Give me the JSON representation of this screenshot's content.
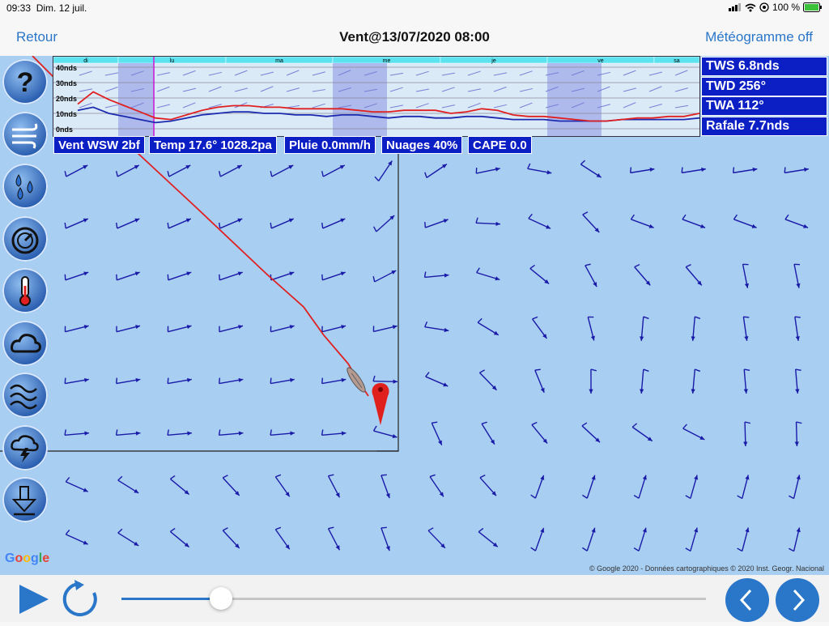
{
  "status": {
    "time": "09:33",
    "date": "Dim. 12 juil.",
    "battery": "100 %"
  },
  "nav": {
    "back_label": "Retour",
    "title": "Vent@13/07/2020 08:00",
    "meteogram_toggle": "Météogramme off"
  },
  "meteogram": {
    "days": [
      "di",
      "lu",
      "ma",
      "me",
      "je",
      "ve",
      "sa"
    ],
    "y_labels": [
      "40nds",
      "30nds",
      "20nds",
      "10nds",
      "0nds"
    ]
  },
  "info_boxes": [
    "Vent WSW 2bf",
    "Temp 17.6° 1028.2pa",
    "Pluie 0.0mm/h",
    "Nuages 40%",
    "CAPE 0.0"
  ],
  "right_boxes": [
    "TWS 6.8nds",
    "TWD 256°",
    "TWA 112°",
    "Rafale 7.7nds"
  ],
  "sidebar": [
    {
      "name": "help",
      "icon": "question-icon"
    },
    {
      "name": "wind",
      "icon": "wind-icon"
    },
    {
      "name": "rain",
      "icon": "rain-icon"
    },
    {
      "name": "pressure",
      "icon": "gauge-icon"
    },
    {
      "name": "temperature",
      "icon": "thermometer-icon"
    },
    {
      "name": "clouds",
      "icon": "cloud-icon"
    },
    {
      "name": "waves",
      "icon": "waves-icon"
    },
    {
      "name": "storm",
      "icon": "storm-icon"
    },
    {
      "name": "download",
      "icon": "download-icon"
    }
  ],
  "map": {
    "google_logo": "Google",
    "copyright": "© Google 2020 - Données cartographiques © 2020 Inst. Geogr. Nacional"
  },
  "playback": {
    "progress": 0.17
  },
  "colors": {
    "accent": "#2a76c9",
    "map_bg": "#a8cef2",
    "panel": "#0b1fc4",
    "route": "#e02020",
    "wind_arrow": "#1a1aa8"
  }
}
